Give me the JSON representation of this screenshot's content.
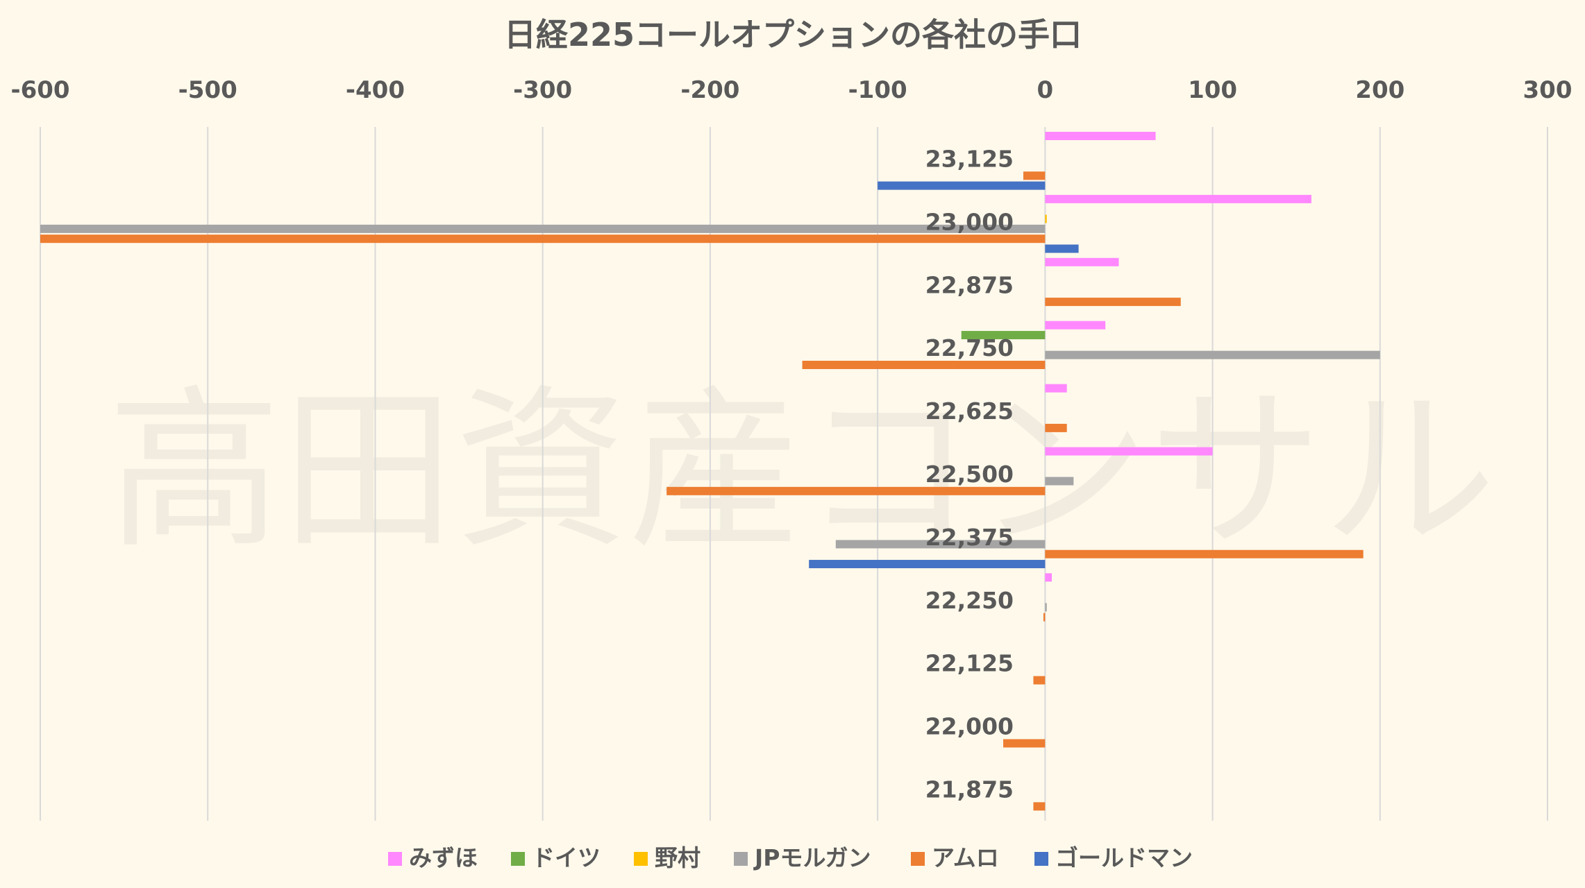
{
  "chart_data": {
    "type": "bar",
    "orientation": "horizontal",
    "title": "日経225コールオプションの各社の手口",
    "watermark": "高田資産コンサル",
    "xlim": [
      -600,
      300
    ],
    "x_ticks": [
      -600,
      -500,
      -400,
      -300,
      -200,
      -100,
      0,
      100,
      200,
      300
    ],
    "x_tick_labels": [
      "-600",
      "-500",
      "-400",
      "-300",
      "-200",
      "-100",
      "0",
      "100",
      "200",
      "300"
    ],
    "grid": true,
    "legend_position": "bottom",
    "categories": [
      "23,125",
      "23,000",
      "22,875",
      "22,750",
      "22,625",
      "22,500",
      "22,375",
      "22,250",
      "22,125",
      "22,000",
      "21,875"
    ],
    "series": [
      {
        "name": "みずほ",
        "color": "#FF88FF",
        "values": [
          66,
          159,
          44,
          36,
          13,
          100,
          0,
          4,
          0,
          0,
          0
        ]
      },
      {
        "name": "ドイツ",
        "color": "#70AD47",
        "values": [
          0,
          0,
          0,
          -50,
          0,
          0,
          0,
          0,
          0,
          0,
          0
        ]
      },
      {
        "name": "野村",
        "color": "#FFC000",
        "values": [
          0,
          1,
          0,
          0,
          0,
          0,
          0,
          0,
          0,
          0,
          0
        ]
      },
      {
        "name": "JPモルガン",
        "color": "#A5A5A5",
        "values": [
          0,
          -600,
          0,
          200,
          0,
          17,
          -125,
          1,
          0,
          0,
          0
        ]
      },
      {
        "name": "アムロ",
        "color": "#ED7D31",
        "values": [
          -13,
          -600,
          81,
          -145,
          13,
          -226,
          190,
          -1,
          -7,
          -25,
          -7
        ]
      },
      {
        "name": "ゴールドマン",
        "color": "#4472C4",
        "values": [
          -100,
          20,
          0,
          0,
          0,
          0,
          -141,
          0,
          0,
          0,
          0
        ]
      }
    ]
  }
}
